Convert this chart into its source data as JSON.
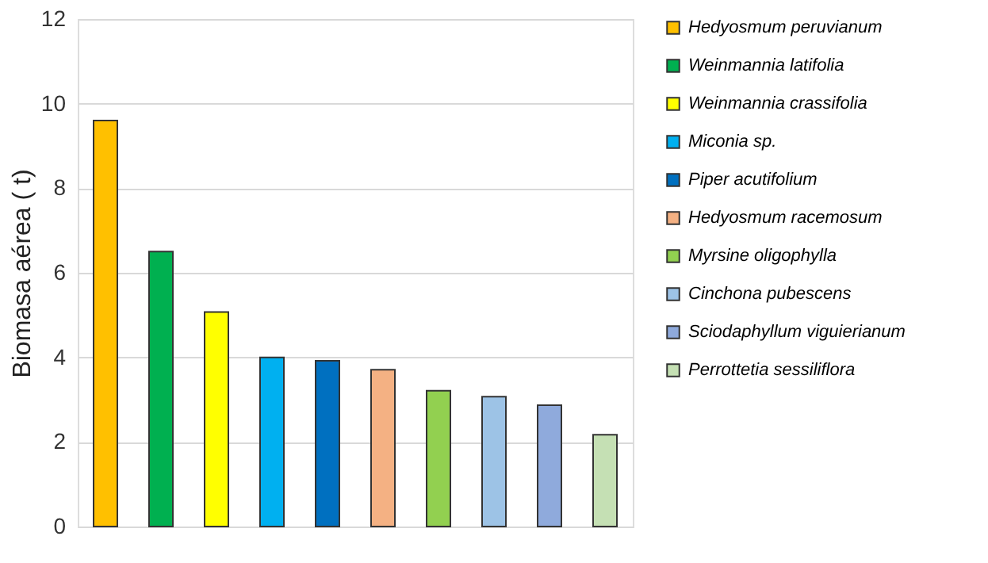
{
  "chart_data": {
    "type": "bar",
    "ylabel": "Biomasa aérea ( t)",
    "categories": [
      null,
      null,
      null,
      null,
      null,
      null,
      null,
      null,
      null,
      null
    ],
    "series": [
      {
        "name": "Hedyosmum peruvianum",
        "color": "#ffc000",
        "values": [
          9.6,
          null,
          null,
          null,
          null,
          null,
          null,
          null,
          null,
          null
        ]
      },
      {
        "name": "Weinmannia latifolia",
        "color": "#00b050",
        "values": [
          null,
          6.5,
          null,
          null,
          null,
          null,
          null,
          null,
          null,
          null
        ]
      },
      {
        "name": "Weinmannia crassifolia",
        "color": "#ffff00",
        "values": [
          null,
          null,
          5.07,
          null,
          null,
          null,
          null,
          null,
          null,
          null
        ]
      },
      {
        "name": "Miconia sp.",
        "color": "#00b0f0",
        "values": [
          null,
          null,
          null,
          4.0,
          null,
          null,
          null,
          null,
          null,
          null
        ]
      },
      {
        "name": "Piper acutifolium",
        "color": "#0070c0",
        "values": [
          null,
          null,
          null,
          null,
          3.92,
          null,
          null,
          null,
          null,
          null
        ]
      },
      {
        "name": "Hedyosmum racemosum",
        "color": "#f4b183",
        "values": [
          null,
          null,
          null,
          null,
          null,
          3.71,
          null,
          null,
          null,
          null
        ]
      },
      {
        "name": "Myrsine oligophylla",
        "color": "#92d050",
        "values": [
          null,
          null,
          null,
          null,
          null,
          null,
          3.21,
          null,
          null,
          null
        ]
      },
      {
        "name": "Cinchona pubescens",
        "color": "#9dc3e6",
        "values": [
          null,
          null,
          null,
          null,
          null,
          null,
          null,
          3.07,
          null,
          null
        ]
      },
      {
        "name": "Sciodaphyllum viguierianum",
        "color": "#8faadc",
        "values": [
          null,
          null,
          null,
          null,
          null,
          null,
          null,
          null,
          2.87,
          null
        ]
      },
      {
        "name": "Perrottetia sessiliflora",
        "color": "#c5e0b4",
        "values": [
          null,
          null,
          null,
          null,
          null,
          null,
          null,
          null,
          null,
          2.17
        ]
      }
    ],
    "ylim": [
      0,
      12
    ],
    "yticks": [
      0,
      2,
      4,
      6,
      8,
      10,
      12
    ],
    "grid": "y",
    "legend": "right",
    "tick_labels": "y"
  }
}
